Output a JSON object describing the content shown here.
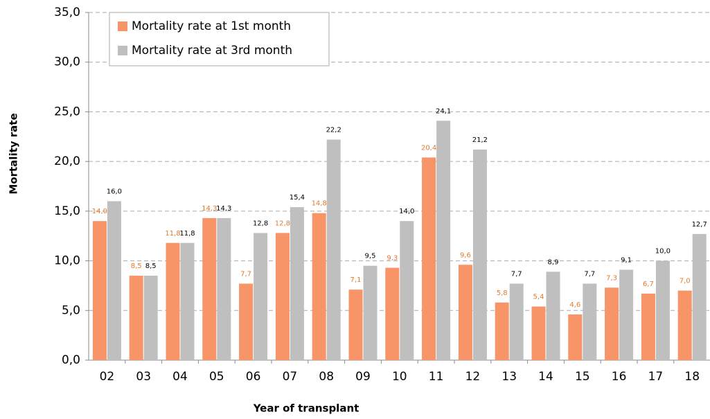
{
  "chart_data": {
    "type": "bar",
    "x_label": "Year of transplant",
    "y_label": "Mortality rate",
    "categories": [
      "02",
      "03",
      "04",
      "05",
      "06",
      "07",
      "08",
      "09",
      "10",
      "11",
      "12",
      "13",
      "14",
      "15",
      "16",
      "17",
      "18"
    ],
    "series": [
      {
        "name": "Mortality rate at 1st month",
        "color": "#f79468",
        "label_color": "#e07b2e",
        "values": [
          14.0,
          8.5,
          11.8,
          14.3,
          7.7,
          12.8,
          14.8,
          7.1,
          9.3,
          20.4,
          9.6,
          5.8,
          5.4,
          4.6,
          7.3,
          6.7,
          7.0
        ],
        "value_labels": [
          "14,0",
          "8,5",
          "11,8",
          "14,3",
          "7,7",
          "12,8",
          "14,8",
          "7,1",
          "9,3",
          "20,4",
          "9,6",
          "5,8",
          "5,4",
          "4,6",
          "7,3",
          "6,7",
          "7,0"
        ]
      },
      {
        "name": "Mortality rate at 3rd month",
        "color": "#bfbfbf",
        "label_color": "#000000",
        "values": [
          16.0,
          8.5,
          11.8,
          14.3,
          12.8,
          15.4,
          22.2,
          9.5,
          14.0,
          24.1,
          21.2,
          7.7,
          8.9,
          7.7,
          9.1,
          10.0,
          12.7
        ],
        "value_labels": [
          "16,0",
          "8,5",
          "11,8",
          "14,3",
          "12,8",
          "15,4",
          "22,2",
          "9,5",
          "14,0",
          "24,1",
          "21,2",
          "7,7",
          "8,9",
          "7,7",
          "9,1",
          "10,0",
          "12,7"
        ]
      }
    ],
    "ylim": [
      0,
      35
    ],
    "yticks": [
      {
        "value": 0,
        "label": "0,0"
      },
      {
        "value": 5,
        "label": "5,0"
      },
      {
        "value": 10,
        "label": "10,0"
      },
      {
        "value": 15,
        "label": "15,0"
      },
      {
        "value": 20,
        "label": "20,0"
      },
      {
        "value": 25,
        "label": "25,0"
      },
      {
        "value": 30,
        "label": "30,0"
      },
      {
        "value": 35,
        "label": "35,0"
      }
    ],
    "grid": true,
    "grid_style": "dashed"
  }
}
